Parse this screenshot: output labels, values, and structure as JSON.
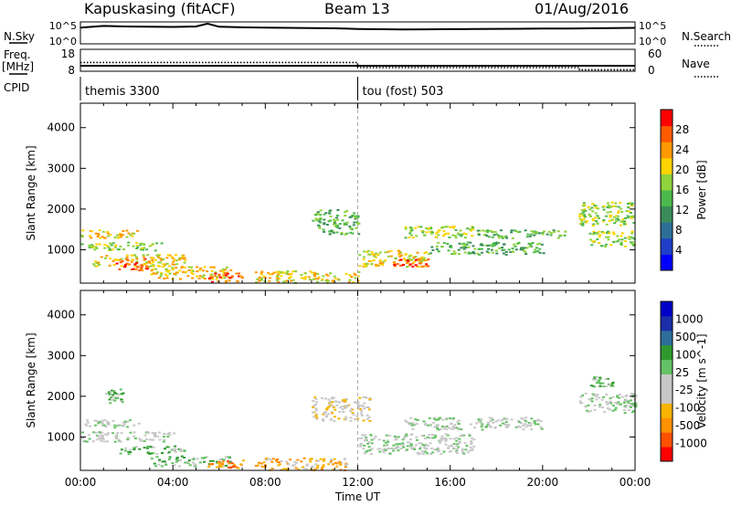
{
  "header": {
    "station": "Kapuskasing (fitACF)",
    "beam": "Beam 13",
    "date": "01/Aug/2016"
  },
  "side_labels": {
    "nsky": "N.Sky",
    "nsearch": "N.Search",
    "freq": "Freq.",
    "freq_unit": "[MHz]",
    "nave": "Nave",
    "cpid": "CPID"
  },
  "cpid_modes": [
    {
      "label": "themis 3300",
      "start_hour": 0
    },
    {
      "label": "tou (fost) 503",
      "start_hour": 12
    }
  ],
  "noise_axis": {
    "ticks": [
      "10^5",
      "10^0"
    ]
  },
  "freq_axis": {
    "left_ticks": [
      "18",
      "8"
    ],
    "right_ticks": [
      "60",
      "0"
    ]
  },
  "time_axis": {
    "label": "Time UT",
    "ticks": [
      "00:00",
      "04:00",
      "08:00",
      "12:00",
      "16:00",
      "20:00",
      "00:00"
    ]
  },
  "colors": {
    "power": [
      "#0000ff",
      "#1f3fc8",
      "#2d6e96",
      "#3a8c5a",
      "#4cb94c",
      "#8fd23c",
      "#ffd400",
      "#ff9900",
      "#ff5a00",
      "#ff0000"
    ],
    "velocity": [
      "#ff0000",
      "#ff5000",
      "#ff9000",
      "#f7b400",
      "#c8c8c8",
      "#c8c8c8",
      "#66c266",
      "#2e9a2e",
      "#2e6e9a",
      "#1a2ea8",
      "#0000c8"
    ]
  },
  "chart_data": [
    {
      "type": "line",
      "title": "N.Sky / N.Search",
      "x_unit": "hours UT",
      "xlim": [
        0,
        24
      ],
      "y_scale": "log",
      "ylim": [
        1,
        100000
      ],
      "series": [
        {
          "name": "N.Sky",
          "x": [
            0,
            1,
            2,
            3,
            4,
            5,
            5.5,
            6,
            7,
            8,
            9,
            10,
            11,
            12,
            13,
            14,
            15,
            16,
            17,
            18,
            19,
            20,
            21,
            22,
            23,
            24
          ],
          "y": [
            5000,
            12000,
            9000,
            8000,
            7000,
            9000,
            40000,
            8000,
            6000,
            5000,
            4500,
            4000,
            3500,
            2500,
            2200,
            2000,
            2100,
            2300,
            2400,
            2600,
            2800,
            3000,
            3200,
            3500,
            4000,
            4500
          ]
        }
      ]
    },
    {
      "type": "line",
      "title": "Freq. / Nave",
      "x_unit": "hours UT",
      "xlim": [
        0,
        24
      ],
      "series": [
        {
          "name": "Freq.",
          "y_axis": "left",
          "ylim": [
            8,
            18
          ],
          "x": [
            0,
            12,
            12,
            21.6,
            21.6,
            24
          ],
          "y": [
            10.5,
            10.5,
            10.5,
            10.5,
            10.5,
            10.5
          ]
        },
        {
          "name": "Nave",
          "y_axis": "right",
          "ylim": [
            0,
            60
          ],
          "x": [
            0,
            12,
            12,
            21.6,
            21.6,
            24
          ],
          "y": [
            24,
            24,
            10,
            10,
            4,
            4
          ]
        }
      ]
    },
    {
      "type": "heatmap",
      "quantity": "Power",
      "title": "",
      "xlabel": "",
      "ylabel": "Slant Range [km]",
      "colorbar_label": "Power [dB]",
      "colorbar_ticks": [
        4,
        8,
        12,
        16,
        20,
        24,
        28
      ],
      "clim": [
        0,
        32
      ],
      "xlim": [
        0,
        24
      ],
      "ylim": [
        180,
        4600
      ],
      "yticks": [
        1000,
        2000,
        3000,
        4000
      ],
      "bands": [
        {
          "t0": 0.0,
          "t1": 2.5,
          "r0": 1300,
          "r1": 1500,
          "level": 6
        },
        {
          "t0": 0.0,
          "t1": 3.5,
          "r0": 1000,
          "r1": 1200,
          "level": 5
        },
        {
          "t0": 0.5,
          "t1": 4.5,
          "r0": 600,
          "r1": 900,
          "level": 6
        },
        {
          "t0": 1.5,
          "t1": 3.0,
          "r0": 500,
          "r1": 800,
          "level": 8
        },
        {
          "t0": 3.0,
          "t1": 6.5,
          "r0": 300,
          "r1": 600,
          "level": 6
        },
        {
          "t0": 5.5,
          "t1": 7.0,
          "r0": 200,
          "r1": 450,
          "level": 8
        },
        {
          "t0": 7.5,
          "t1": 12.0,
          "r0": 200,
          "r1": 500,
          "level": 6
        },
        {
          "t0": 10.0,
          "t1": 12.0,
          "r0": 1400,
          "r1": 2000,
          "level": 4
        },
        {
          "t0": 12.0,
          "t1": 15.0,
          "r0": 600,
          "r1": 1000,
          "level": 6
        },
        {
          "t0": 13.5,
          "t1": 15.0,
          "r0": 600,
          "r1": 800,
          "level": 8
        },
        {
          "t0": 14.0,
          "t1": 17.0,
          "r0": 1300,
          "r1": 1600,
          "level": 5
        },
        {
          "t0": 15.0,
          "t1": 20.0,
          "r0": 900,
          "r1": 1200,
          "level": 4
        },
        {
          "t0": 17.0,
          "t1": 21.0,
          "r0": 1300,
          "r1": 1500,
          "level": 4
        },
        {
          "t0": 21.5,
          "t1": 24.0,
          "r0": 1600,
          "r1": 2200,
          "level": 5
        },
        {
          "t0": 22.0,
          "t1": 24.0,
          "r0": 1100,
          "r1": 1500,
          "level": 5
        }
      ]
    },
    {
      "type": "heatmap",
      "quantity": "Velocity",
      "title": "",
      "xlabel": "Time UT",
      "ylabel": "Slant Range [km]",
      "colorbar_label": "Velocity [m s^-1]",
      "colorbar_ticks": [
        1000,
        500,
        100,
        25,
        -25,
        -100,
        -500,
        -1000
      ],
      "xlim": [
        0,
        24
      ],
      "ylim": [
        180,
        4600
      ],
      "yticks": [
        1000,
        2000,
        3000,
        4000
      ],
      "bands": [
        {
          "t0": 0.0,
          "t1": 2.5,
          "r0": 1250,
          "r1": 1450,
          "level": 5
        },
        {
          "t0": 0.0,
          "t1": 4.0,
          "r0": 900,
          "r1": 1150,
          "level": 5
        },
        {
          "t0": 1.5,
          "t1": 4.5,
          "r0": 600,
          "r1": 800,
          "level": 6
        },
        {
          "t0": 1.0,
          "t1": 1.8,
          "r0": 1850,
          "r1": 2200,
          "level": 6
        },
        {
          "t0": 3.0,
          "t1": 6.5,
          "r0": 300,
          "r1": 550,
          "level": 6
        },
        {
          "t0": 5.5,
          "t1": 7.0,
          "r0": 250,
          "r1": 450,
          "level": 2
        },
        {
          "t0": 7.5,
          "t1": 11.5,
          "r0": 200,
          "r1": 500,
          "level": 3
        },
        {
          "t0": 10.0,
          "t1": 12.5,
          "r0": 1400,
          "r1": 2000,
          "level": 4
        },
        {
          "t0": 12.0,
          "t1": 17.0,
          "r0": 600,
          "r1": 1100,
          "level": 5
        },
        {
          "t0": 14.0,
          "t1": 20.0,
          "r0": 1200,
          "r1": 1500,
          "level": 5
        },
        {
          "t0": 21.5,
          "t1": 24.0,
          "r0": 1600,
          "r1": 2100,
          "level": 5
        },
        {
          "t0": 22.0,
          "t1": 23.0,
          "r0": 2250,
          "r1": 2500,
          "level": 6
        }
      ]
    }
  ]
}
